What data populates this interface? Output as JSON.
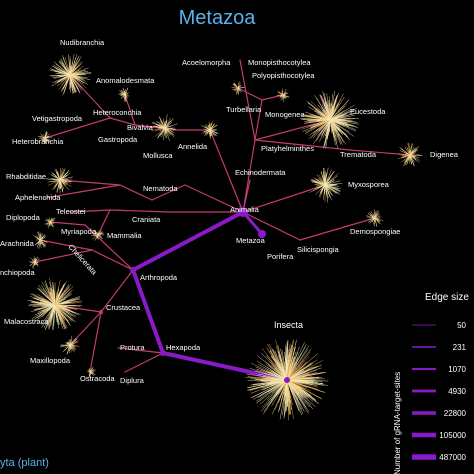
{
  "title": "Metazoa",
  "footer_text": "yta (plant)",
  "legend": {
    "heading": "Edge size",
    "axis_label": "Number of gRNA-target-sites",
    "values": [
      "50",
      "231",
      "1070",
      "4930",
      "22800",
      "105000",
      "487000"
    ]
  },
  "colors": {
    "title": "#55b4ea",
    "edge_thin": "#c23c6e",
    "edge_thick": "#8a1ac8",
    "burst": "#f3e7b4",
    "burst_core": "#f4a340",
    "hub": "#8a1ac8"
  },
  "labels": {
    "nudibranchia": "Nudibranchia",
    "anomalodesmata": "Anomalodesmata",
    "vetigastropoda": "Vetigastropoda",
    "heteroconchia": "Heteroconchia",
    "bivalvia": "Bivalvia",
    "heterobranchia": "Heterobranchia",
    "gastropoda": "Gastropoda",
    "mollusca": "Mollusca",
    "annelida": "Annelida",
    "acoelomorpha": "Acoelomorpha",
    "monopisthocotylea": "Monopisthocotylea",
    "polyopisthocotylea": "Polyopisthocotylea",
    "turbellaria": "Turbellaria",
    "monogenea": "Monogenea",
    "eucestoda": "Eucestoda",
    "platyhelminthes": "Platyhelminthes",
    "trematoda": "Trematoda",
    "digenea": "Digenea",
    "rhabditidae": "Rhabditidae",
    "aphelenchida": "Aphelenchida",
    "nematoda": "Nematoda",
    "echinodermata": "Echinodermata",
    "myxosporea": "Myxosporea",
    "diplopoda": "Diplopoda",
    "teleostei": "Teleostei",
    "craniata": "Craniata",
    "animalia": "Animalia",
    "myriapoda": "Myriapoda",
    "mammalia": "Mammalia",
    "arachnida": "Arachnida",
    "chelicerata": "Chelicerata",
    "metazoa_node": "Metazoa",
    "porifera": "Porifera",
    "demospongiae": "Demospongiae",
    "silicispongia": "Silicispongia",
    "branchiopoda": "nchiopoda",
    "arthropoda": "Arthropoda",
    "malacostraca": "Malacostraca",
    "crustacea": "Crustacea",
    "insecta": "Insecta",
    "protura": "Protura",
    "hexapoda": "Hexapoda",
    "maxillopoda": "Maxillopoda",
    "ostracoda": "Ostracoda",
    "diplura": "Diplura"
  }
}
